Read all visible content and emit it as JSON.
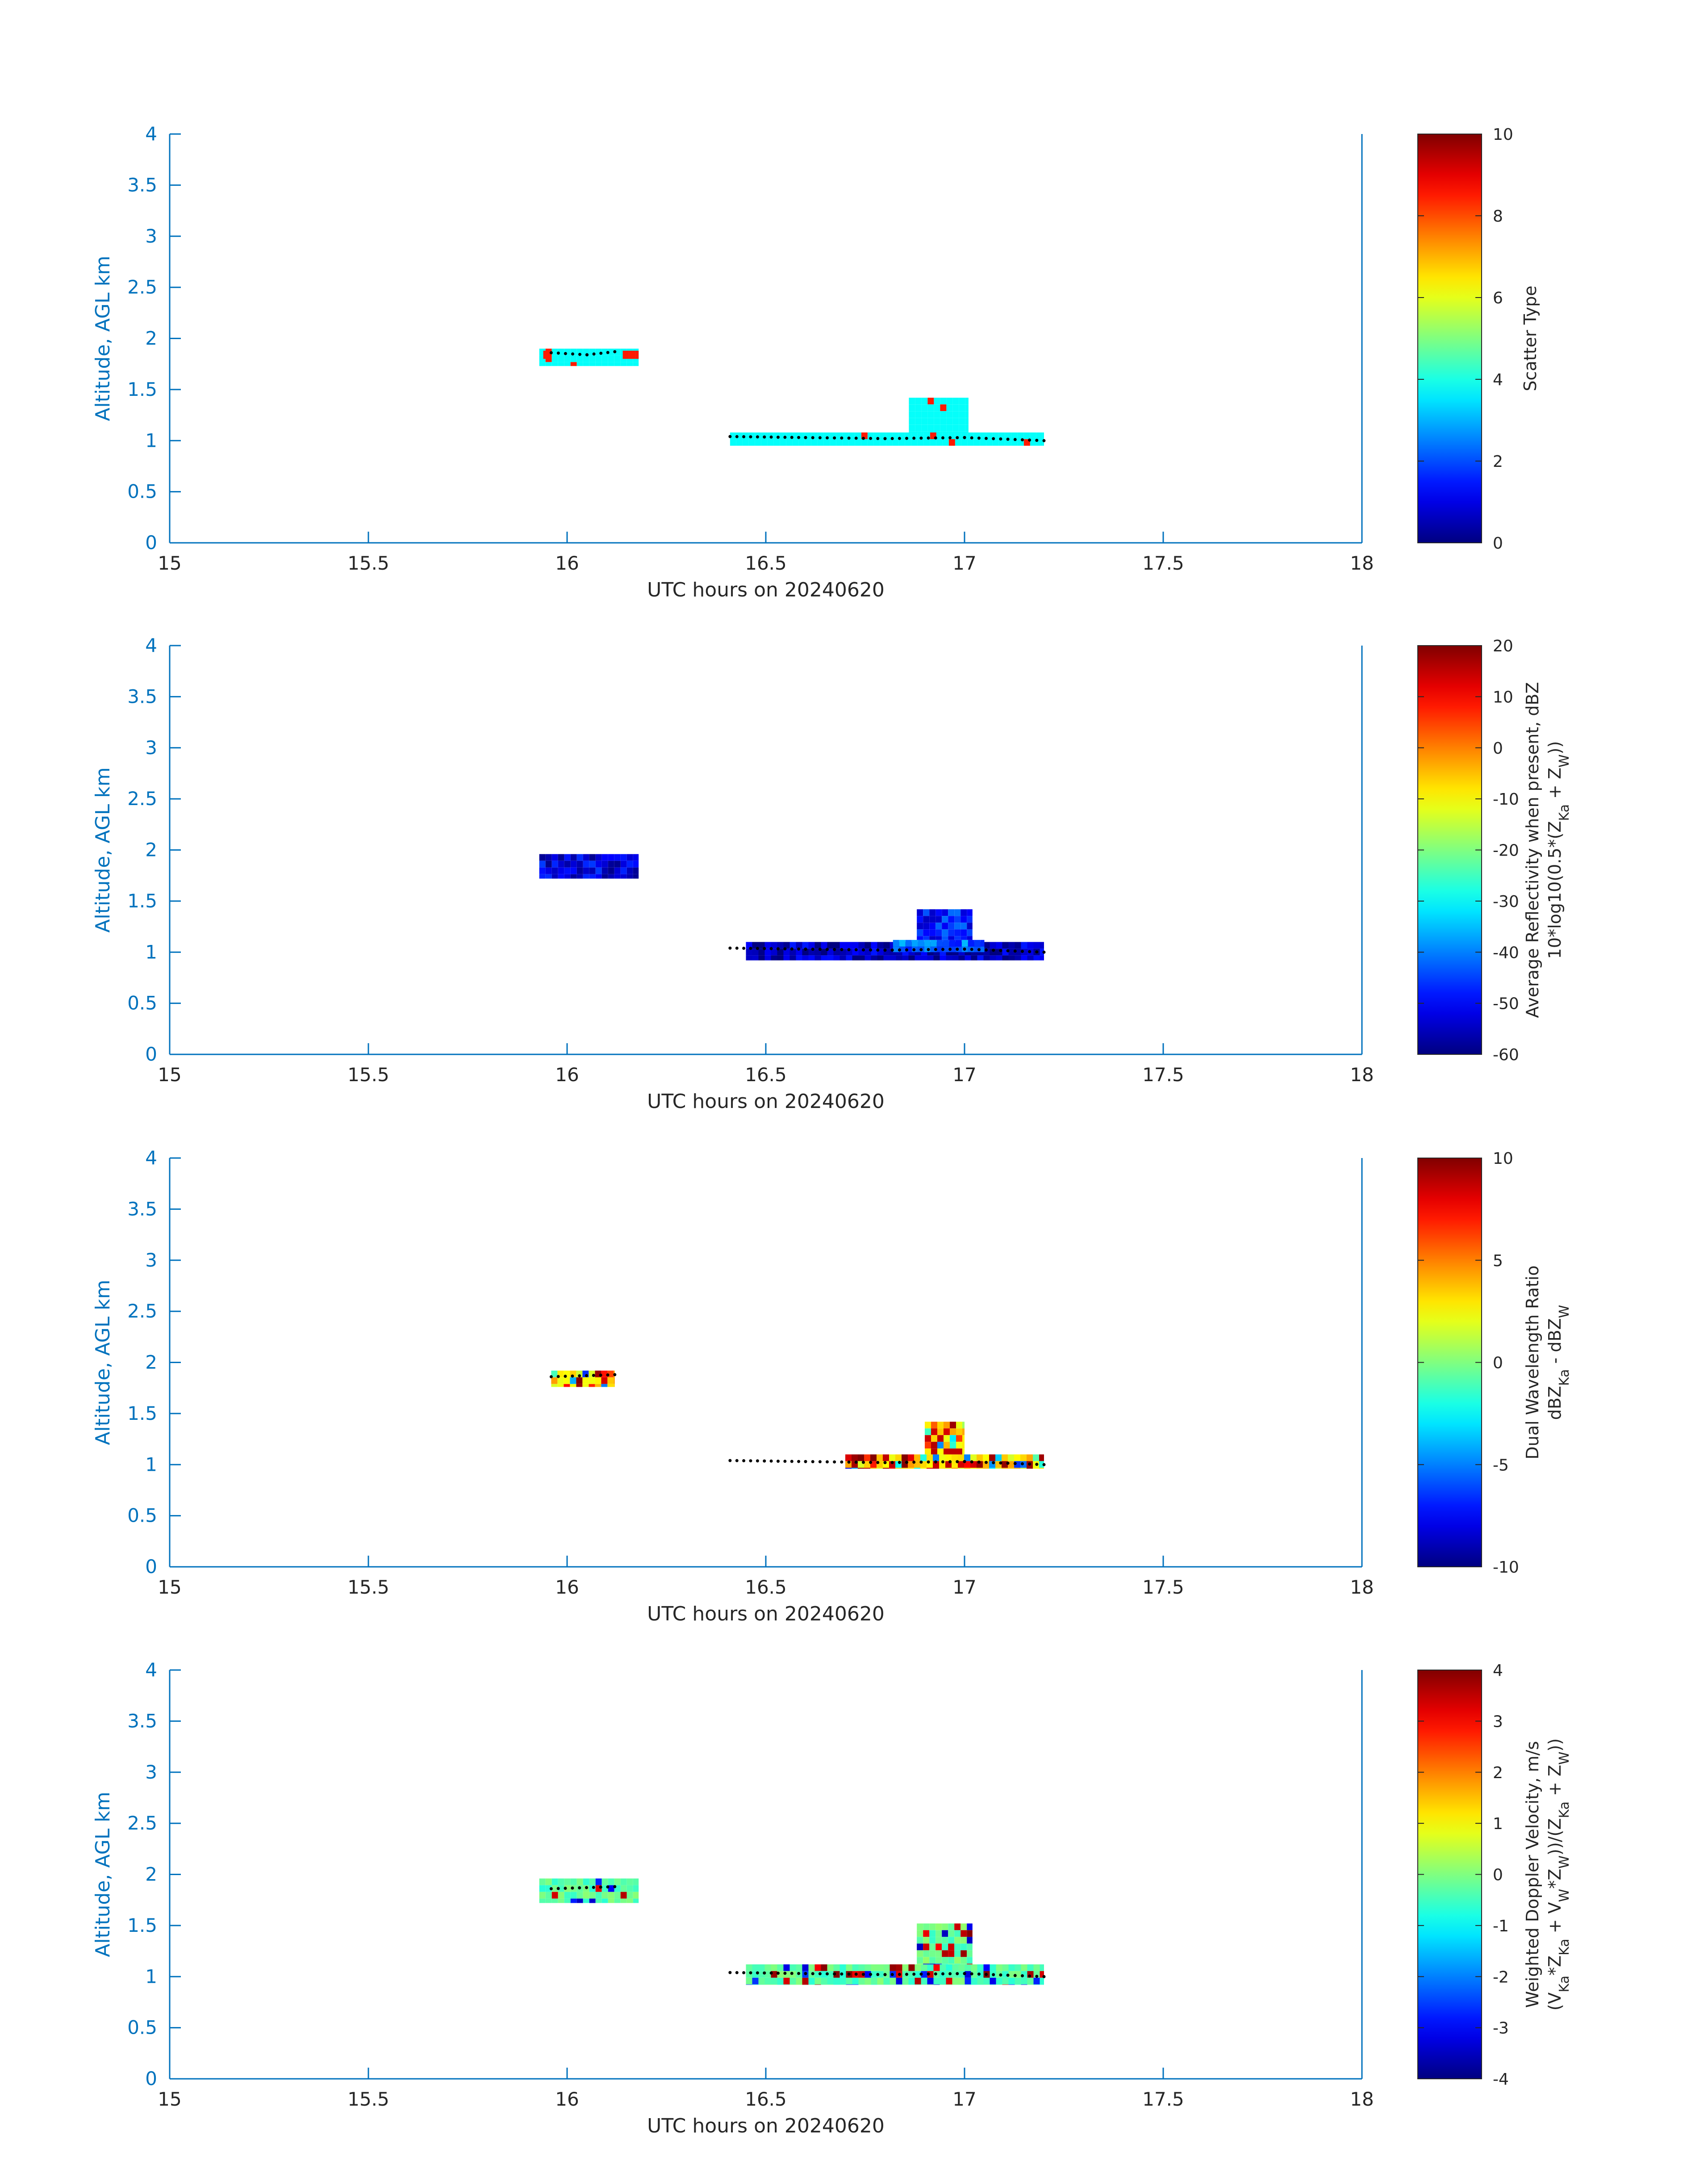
{
  "chart_data": [
    {
      "type": "heatmap",
      "title": "",
      "xlabel": "UTC hours on 20240620",
      "ylabel": "Altitude, AGL km",
      "xlim": [
        15,
        18
      ],
      "ylim": [
        0,
        4
      ],
      "xticks": [
        "15",
        "15.5",
        "16",
        "16.5",
        "17",
        "17.5",
        "18"
      ],
      "yticks": [
        "0",
        "0.5",
        "1",
        "1.5",
        "2",
        "2.5",
        "3",
        "3.5",
        "4"
      ],
      "colorbar": {
        "label_lines": [
          "Scatter Type"
        ],
        "range": [
          0,
          10
        ],
        "ticks": [
          "0",
          "2",
          "4",
          "6",
          "8",
          "10"
        ]
      },
      "blobs": [
        {
          "x": [
            15.93,
            16.18
          ],
          "y": [
            1.73,
            1.9
          ],
          "value": 3.8
        },
        {
          "x": [
            15.94,
            15.96
          ],
          "y": [
            1.8,
            1.88
          ],
          "value": 8.5
        },
        {
          "x": [
            16.14,
            16.18
          ],
          "y": [
            1.8,
            1.88
          ],
          "value": 8.5
        },
        {
          "x": [
            16.41,
            17.2
          ],
          "y": [
            0.95,
            1.08
          ],
          "value": 3.8
        },
        {
          "x": [
            16.86,
            17.01
          ],
          "y": [
            1.08,
            1.42
          ],
          "value": 3.8
        }
      ],
      "flight_track": [
        {
          "x": 15.96,
          "y": 1.86
        },
        {
          "x": 16.05,
          "y": 1.84
        },
        {
          "x": 16.12,
          "y": 1.87
        },
        {
          "x": 16.41,
          "y": 1.04
        },
        {
          "x": 16.6,
          "y": 1.03
        },
        {
          "x": 16.8,
          "y": 1.02
        },
        {
          "x": 17.0,
          "y": 1.03
        },
        {
          "x": 17.2,
          "y": 1.0
        }
      ]
    },
    {
      "type": "heatmap",
      "title": "",
      "xlabel": "UTC hours on 20240620",
      "ylabel": "Altitude, AGL km",
      "xlim": [
        15,
        18
      ],
      "ylim": [
        0,
        4
      ],
      "xticks": [
        "15",
        "15.5",
        "16",
        "16.5",
        "17",
        "17.5",
        "18"
      ],
      "yticks": [
        "0",
        "0.5",
        "1",
        "1.5",
        "2",
        "2.5",
        "3",
        "3.5",
        "4"
      ],
      "colorbar": {
        "label_lines": [
          "Average Reflectivity when present, dBZ",
          "10*log10(0.5*(Z_Ka + Z_W))"
        ],
        "range": [
          -60,
          20
        ],
        "ticks": [
          "-60",
          "-50",
          "-40",
          "-30",
          "-20",
          "-10",
          "0",
          "10",
          "20"
        ]
      },
      "blobs": [
        {
          "x": [
            15.93,
            16.18
          ],
          "y": [
            1.72,
            1.96
          ],
          "value": -52
        },
        {
          "x": [
            16.45,
            17.2
          ],
          "y": [
            0.92,
            1.1
          ],
          "value": -55
        },
        {
          "x": [
            16.82,
            17.05
          ],
          "y": [
            1.0,
            1.12
          ],
          "value": -42
        },
        {
          "x": [
            16.88,
            17.02
          ],
          "y": [
            1.12,
            1.42
          ],
          "value": -48
        }
      ],
      "flight_track": [
        {
          "x": 16.41,
          "y": 1.04
        },
        {
          "x": 16.6,
          "y": 1.03
        },
        {
          "x": 16.8,
          "y": 1.02
        },
        {
          "x": 17.0,
          "y": 1.03
        },
        {
          "x": 17.2,
          "y": 1.0
        }
      ]
    },
    {
      "type": "heatmap",
      "title": "",
      "xlabel": "UTC hours on 20240620",
      "ylabel": "Altitude, AGL km",
      "xlim": [
        15,
        18
      ],
      "ylim": [
        0,
        4
      ],
      "xticks": [
        "15",
        "15.5",
        "16",
        "16.5",
        "17",
        "17.5",
        "18"
      ],
      "yticks": [
        "0",
        "0.5",
        "1",
        "1.5",
        "2",
        "2.5",
        "3",
        "3.5",
        "4"
      ],
      "colorbar": {
        "label_lines": [
          "Dual Wavelength Ratio",
          "dBZ_Ka - dBZ_W"
        ],
        "range": [
          -10,
          10
        ],
        "ticks": [
          "-10",
          "-5",
          "0",
          "5",
          "10"
        ]
      },
      "blobs": [
        {
          "x": [
            15.96,
            16.12
          ],
          "y": [
            1.76,
            1.92
          ],
          "value": 5
        },
        {
          "x": [
            16.7,
            17.2
          ],
          "y": [
            0.96,
            1.1
          ],
          "value": 3
        },
        {
          "x": [
            16.9,
            17.0
          ],
          "y": [
            1.1,
            1.42
          ],
          "value": 3
        }
      ],
      "flight_track": [
        {
          "x": 15.96,
          "y": 1.86
        },
        {
          "x": 16.12,
          "y": 1.88
        },
        {
          "x": 16.41,
          "y": 1.04
        },
        {
          "x": 16.6,
          "y": 1.03
        },
        {
          "x": 16.8,
          "y": 1.02
        },
        {
          "x": 17.0,
          "y": 1.03
        },
        {
          "x": 17.2,
          "y": 1.0
        }
      ]
    },
    {
      "type": "heatmap",
      "title": "",
      "xlabel": "UTC hours on 20240620",
      "ylabel": "Altitude, AGL km",
      "xlim": [
        15,
        18
      ],
      "ylim": [
        0,
        4
      ],
      "xticks": [
        "15",
        "15.5",
        "16",
        "16.5",
        "17",
        "17.5",
        "18"
      ],
      "yticks": [
        "0",
        "0.5",
        "1",
        "1.5",
        "2",
        "2.5",
        "3",
        "3.5",
        "4"
      ],
      "colorbar": {
        "label_lines": [
          "Weighted Doppler Velocity, m/s",
          "(V_Ka*Z_Ka + V_W*Z_W))/(Z_Ka + Z_W))"
        ],
        "range": [
          -4,
          4
        ],
        "ticks": [
          "-4",
          "-3",
          "-2",
          "-1",
          "0",
          "1",
          "2",
          "3",
          "4"
        ]
      },
      "blobs": [
        {
          "x": [
            15.93,
            16.18
          ],
          "y": [
            1.72,
            1.96
          ],
          "value": -0.3
        },
        {
          "x": [
            16.45,
            17.2
          ],
          "y": [
            0.92,
            1.12
          ],
          "value": -0.3
        },
        {
          "x": [
            16.88,
            17.02
          ],
          "y": [
            1.12,
            1.52
          ],
          "value": -0.2
        }
      ],
      "flight_track": [
        {
          "x": 15.96,
          "y": 1.86
        },
        {
          "x": 16.12,
          "y": 1.88
        },
        {
          "x": 16.41,
          "y": 1.04
        },
        {
          "x": 16.6,
          "y": 1.03
        },
        {
          "x": 16.8,
          "y": 1.02
        },
        {
          "x": 17.0,
          "y": 1.03
        },
        {
          "x": 17.2,
          "y": 1.0
        }
      ]
    }
  ],
  "colors": {
    "axis": "#0072bd",
    "text": "#262626",
    "track": "#000000"
  }
}
